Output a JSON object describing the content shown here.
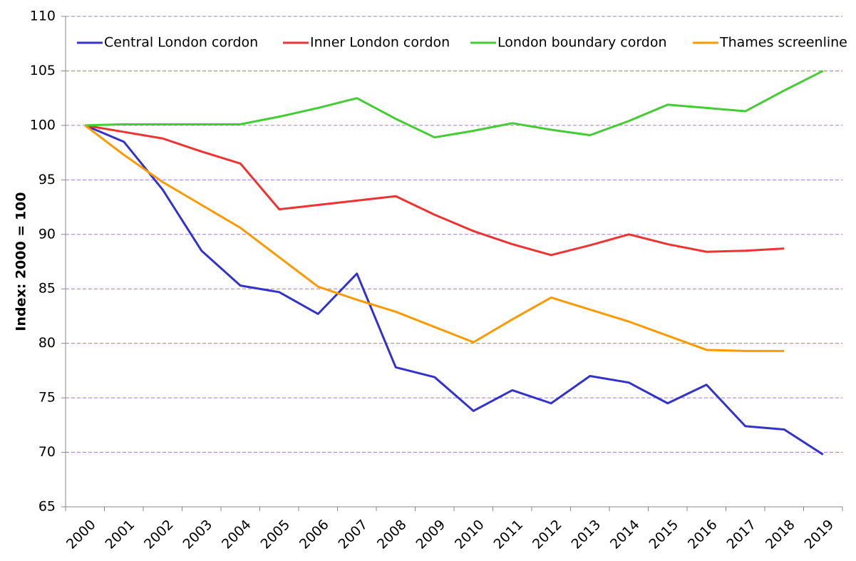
{
  "chart_data": {
    "type": "line",
    "y_label": "Index: 2000 = 100",
    "categories": [
      "2000",
      "2001",
      "2002",
      "2003",
      "2004",
      "2005",
      "2006",
      "2007",
      "2008",
      "2009",
      "2010",
      "2011",
      "2012",
      "2013",
      "2014",
      "2015",
      "2016",
      "2017",
      "2018",
      "2019"
    ],
    "series": [
      {
        "name": "Central London cordon",
        "color": "#3333cc",
        "values": [
          100,
          98.5,
          94.1,
          88.5,
          85.3,
          84.7,
          82.7,
          86.4,
          77.8,
          76.9,
          73.8,
          75.7,
          74.5,
          77.0,
          76.4,
          74.5,
          76.2,
          72.4,
          72.1,
          69.8
        ]
      },
      {
        "name": "Inner London cordon",
        "color": "#ee3333",
        "values": [
          100,
          99.4,
          98.8,
          97.6,
          96.5,
          92.3,
          92.7,
          93.1,
          93.5,
          91.8,
          90.3,
          89.1,
          88.1,
          89.0,
          90.0,
          89.1,
          88.4,
          88.5,
          88.7,
          null
        ]
      },
      {
        "name": "London boundary cordon",
        "color": "#44cc33",
        "values": [
          100,
          100.1,
          100.1,
          100.1,
          100.1,
          100.8,
          101.6,
          102.5,
          100.6,
          98.9,
          99.5,
          100.2,
          99.6,
          99.1,
          100.4,
          101.9,
          101.6,
          101.3,
          103.2,
          105.0
        ]
      },
      {
        "name": "Thames screenline",
        "color": "#ff9900",
        "values": [
          100,
          97.3,
          94.8,
          92.7,
          90.6,
          87.9,
          85.2,
          84.0,
          82.9,
          81.5,
          80.1,
          82.2,
          84.2,
          83.1,
          82.0,
          80.7,
          79.4,
          79.3,
          79.3,
          null
        ]
      }
    ],
    "ylim": [
      65,
      110
    ],
    "yticks": [
      65,
      70,
      75,
      80,
      85,
      90,
      95,
      100,
      105,
      110
    ],
    "grid": true,
    "legend": "top"
  }
}
